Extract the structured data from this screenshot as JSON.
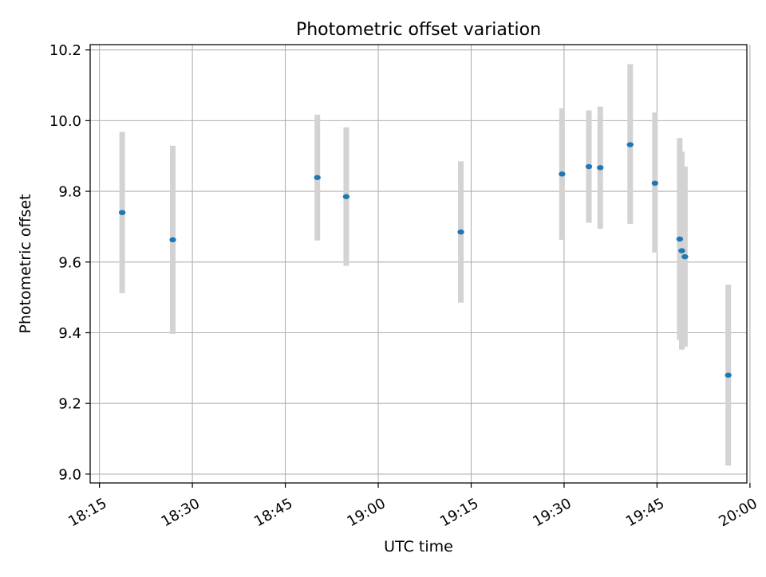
{
  "chart_data": {
    "type": "scatter",
    "title": "Photometric offset variation",
    "xlabel": "UTC time",
    "ylabel": "Photometric offset",
    "x_tick_labels": [
      "18:15",
      "18:30",
      "18:45",
      "19:00",
      "19:15",
      "19:30",
      "19:45",
      "20:00"
    ],
    "x_tick_values": [
      "18:15",
      "18:30",
      "18:45",
      "19:00",
      "19:15",
      "19:30",
      "19:45",
      "20:00"
    ],
    "y_tick_labels": [
      "9.0",
      "9.2",
      "9.4",
      "9.6",
      "9.8",
      "10.0",
      "10.2"
    ],
    "y_tick_values": [
      9.0,
      9.2,
      9.4,
      9.6,
      9.8,
      10.0,
      10.2
    ],
    "xlim": [
      "18:13:30",
      "19:59:30"
    ],
    "ylim": [
      8.975,
      10.215
    ],
    "grid": true,
    "colors": {
      "point": "#1f77b4",
      "error_bar": "#d3d3d3",
      "grid": "#b0b0b0",
      "axes": "#000000"
    },
    "points": [
      {
        "x": "18:18:40",
        "y": 9.74,
        "y_low": 9.512,
        "y_high": 9.968
      },
      {
        "x": "18:26:50",
        "y": 9.663,
        "y_low": 9.397,
        "y_high": 9.929
      },
      {
        "x": "18:50:10",
        "y": 9.839,
        "y_low": 9.661,
        "y_high": 10.017
      },
      {
        "x": "18:54:50",
        "y": 9.785,
        "y_low": 9.589,
        "y_high": 9.981
      },
      {
        "x": "19:13:20",
        "y": 9.685,
        "y_low": 9.485,
        "y_high": 9.885
      },
      {
        "x": "19:29:40",
        "y": 9.849,
        "y_low": 9.663,
        "y_high": 10.035
      },
      {
        "x": "19:34:00",
        "y": 9.87,
        "y_low": 9.711,
        "y_high": 10.029
      },
      {
        "x": "19:35:50",
        "y": 9.867,
        "y_low": 9.694,
        "y_high": 10.04
      },
      {
        "x": "19:40:40",
        "y": 9.932,
        "y_low": 9.708,
        "y_high": 10.16
      },
      {
        "x": "19:44:40",
        "y": 9.823,
        "y_low": 9.627,
        "y_high": 10.023
      },
      {
        "x": "19:48:40",
        "y": 9.665,
        "y_low": 9.379,
        "y_high": 9.951
      },
      {
        "x": "19:49:00",
        "y": 9.632,
        "y_low": 9.352,
        "y_high": 9.912
      },
      {
        "x": "19:49:30",
        "y": 9.615,
        "y_low": 9.36,
        "y_high": 9.87
      },
      {
        "x": "19:56:30",
        "y": 9.28,
        "y_low": 9.024,
        "y_high": 9.536
      }
    ]
  }
}
